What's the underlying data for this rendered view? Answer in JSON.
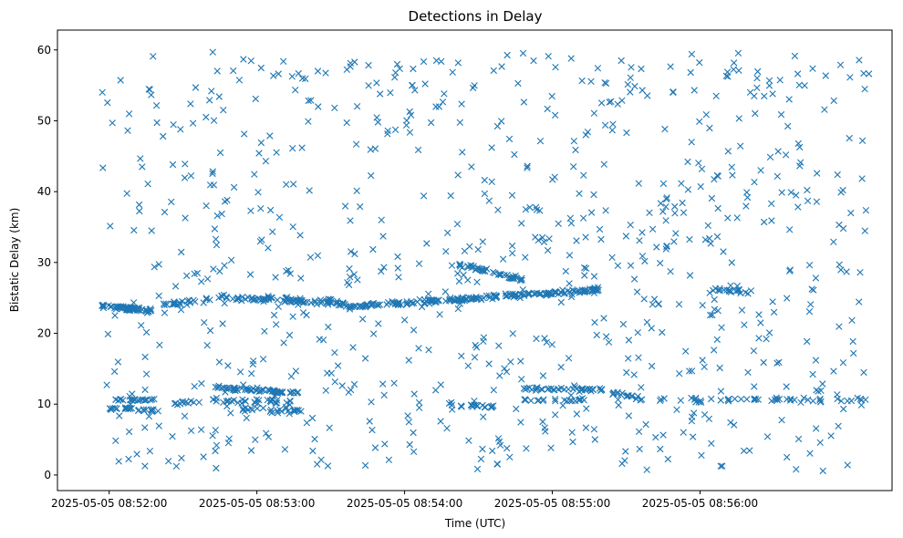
{
  "chart_data": {
    "type": "scatter",
    "title": "Detections in Delay",
    "xlabel": "Time (UTC)",
    "ylabel": "Bistatic Delay (km)",
    "marker": "x",
    "color": "#1f77b4",
    "x_unit": "minutes after 2025-05-05 08:51:00",
    "xlim": [
      0.65,
      6.3
    ],
    "ylim": [
      -2.2,
      62.8
    ],
    "x_ticks": [
      {
        "value": 1,
        "label": "2025-05-05 08:52:00"
      },
      {
        "value": 2,
        "label": "2025-05-05 08:53:00"
      },
      {
        "value": 3,
        "label": "2025-05-05 08:54:00"
      },
      {
        "value": 4,
        "label": "2025-05-05 08:55:00"
      },
      {
        "value": 5,
        "label": "2025-05-05 08:56:00"
      }
    ],
    "y_ticks": [
      0,
      10,
      20,
      30,
      40,
      50,
      60
    ],
    "x_range": [
      0.95,
      6.15
    ],
    "tracks": [
      {
        "x": [
          0.95,
          1.3
        ],
        "y": [
          23.8,
          23.2
        ],
        "n": 60,
        "spread": 0.3
      },
      {
        "x": [
          1.35,
          1.75
        ],
        "y": [
          24.0,
          24.8
        ],
        "n": 25,
        "spread": 0.3
      },
      {
        "x": [
          1.75,
          2.6
        ],
        "y": [
          25.2,
          24.2
        ],
        "n": 90,
        "spread": 0.4
      },
      {
        "x": [
          2.6,
          4.35
        ],
        "y": [
          23.7,
          26.2
        ],
        "n": 200,
        "spread": 0.3
      },
      {
        "x": [
          3.35,
          3.8
        ],
        "y": [
          29.8,
          27.5
        ],
        "n": 45,
        "spread": 0.3
      },
      {
        "x": [
          5.05,
          5.35
        ],
        "y": [
          26.3,
          25.8
        ],
        "n": 20,
        "spread": 0.3
      },
      {
        "x": [
          1.0,
          1.3
        ],
        "y": [
          9.4,
          9.2
        ],
        "n": 25,
        "spread": 0.2
      },
      {
        "x": [
          1.0,
          1.3
        ],
        "y": [
          10.6,
          10.6
        ],
        "n": 20,
        "spread": 0.2
      },
      {
        "x": [
          1.45,
          1.6
        ],
        "y": [
          10.0,
          10.3
        ],
        "n": 10,
        "spread": 0.3
      },
      {
        "x": [
          1.7,
          2.3
        ],
        "y": [
          12.4,
          11.5
        ],
        "n": 60,
        "spread": 0.3
      },
      {
        "x": [
          1.9,
          2.3
        ],
        "y": [
          9.2,
          9.0
        ],
        "n": 25,
        "spread": 0.3
      },
      {
        "x": [
          1.7,
          2.25
        ],
        "y": [
          10.5,
          10.2
        ],
        "n": 35,
        "spread": 0.4
      },
      {
        "x": [
          3.3,
          3.65
        ],
        "y": [
          10.0,
          9.5
        ],
        "n": 20,
        "spread": 0.3
      },
      {
        "x": [
          3.8,
          4.35
        ],
        "y": [
          12.2,
          12.0
        ],
        "n": 40,
        "spread": 0.2
      },
      {
        "x": [
          3.8,
          4.25
        ],
        "y": [
          10.6,
          10.6
        ],
        "n": 20,
        "spread": 0.2
      },
      {
        "x": [
          4.4,
          4.6
        ],
        "y": [
          11.5,
          10.8
        ],
        "n": 15,
        "spread": 0.3
      },
      {
        "x": [
          4.6,
          6.15
        ],
        "y": [
          10.6,
          10.6
        ],
        "n": 50,
        "spread": 0.3
      }
    ],
    "noise_points": 800
  }
}
